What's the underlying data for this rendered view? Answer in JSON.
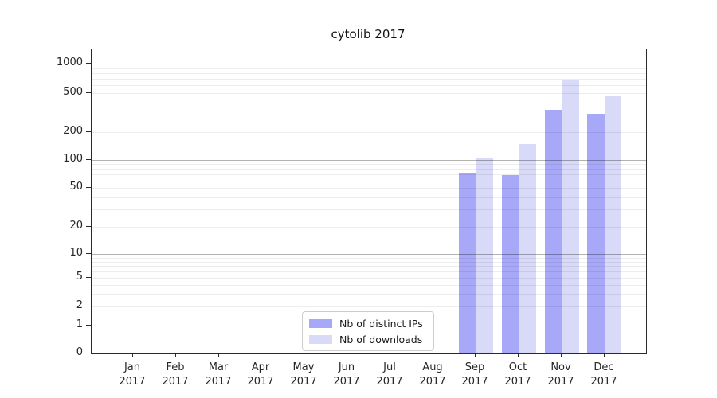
{
  "chart_data": {
    "type": "bar",
    "title": "cytolib 2017",
    "categories": [
      "Jan",
      "Feb",
      "Mar",
      "Apr",
      "May",
      "Jun",
      "Jul",
      "Aug",
      "Sep",
      "Oct",
      "Nov",
      "Dec"
    ],
    "x_tick_year": "2017",
    "series": [
      {
        "name": "Nb of distinct IPs",
        "color": "#a8a8f8",
        "values": [
          0,
          0,
          0,
          0,
          0,
          0,
          0,
          0,
          73,
          68,
          340,
          310
        ]
      },
      {
        "name": "Nb of downloads",
        "color": "#d9d9f8",
        "values": [
          0,
          0,
          0,
          0,
          0,
          0,
          0,
          0,
          107,
          150,
          680,
          470
        ]
      }
    ],
    "y_ticks": [
      0,
      1,
      2,
      5,
      10,
      20,
      50,
      100,
      200,
      500,
      1000
    ],
    "y_scale": "symlog",
    "ylim": [
      0,
      1400
    ],
    "grid": true,
    "gridline_minor_color": "#ececec",
    "gridline_major_color": "#b0b0b0",
    "legend_position": "lower-center-left",
    "axis_color": "#2a2a2a"
  }
}
